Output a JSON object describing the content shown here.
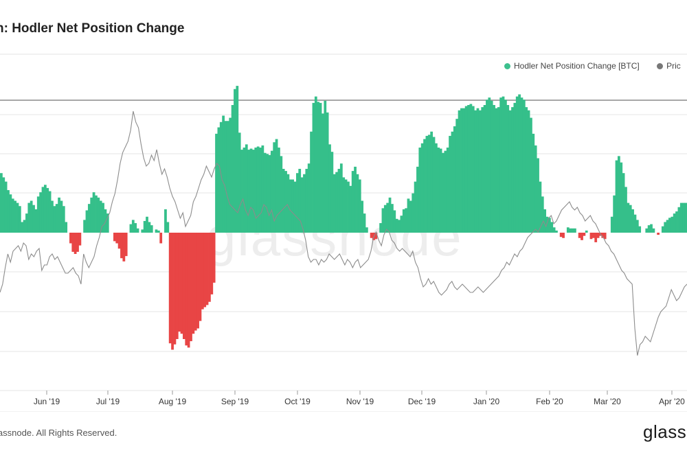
{
  "title": "n: Hodler Net Position Change",
  "legend": {
    "series1": "Hodler Net Position Change [BTC]",
    "series2": "Pric",
    "series1_color": "#3dc08e",
    "series2_color": "#777777"
  },
  "colors": {
    "positive": "#35bf8a",
    "negative": "#e84545",
    "price": "#8c8c8c",
    "grid": "#e6e6e6",
    "axis": "#999999"
  },
  "footer": {
    "copyright": "lassnode. All Rights Reserved.",
    "brand": "glass"
  },
  "watermark": "glassnode",
  "chart_data": {
    "type": "bar",
    "x_ticks": [
      "Jun '19",
      "Jul '19",
      "Aug '19",
      "Sep '19",
      "Oct '19",
      "Nov '19",
      "Dec '19",
      "Jan '20",
      "Feb '20",
      "Mar '20",
      "Apr '20"
    ],
    "grid": true,
    "legend_position": "top-right",
    "series": [
      {
        "name": "Hodler Net Position Change [BTC]",
        "kind": "bar",
        "values": [
          56,
          52,
          48,
          40,
          36,
          32,
          30,
          28,
          25,
          10,
          12,
          18,
          28,
          30,
          26,
          22,
          34,
          38,
          43,
          45,
          42,
          39,
          30,
          25,
          27,
          33,
          30,
          25,
          10,
          0,
          -10,
          -18,
          -20,
          -18,
          -12,
          0,
          12,
          21,
          27,
          33,
          38,
          35,
          33,
          30,
          28,
          22,
          18,
          0,
          0,
          -8,
          -10,
          -15,
          -24,
          -27,
          -22,
          0,
          8,
          12,
          9,
          4,
          0,
          3,
          11,
          15,
          10,
          7,
          0,
          3,
          2,
          -10,
          0,
          22,
          10,
          -104,
          -110,
          -105,
          -100,
          -93,
          -95,
          -100,
          -106,
          -108,
          -102,
          -95,
          -92,
          -90,
          -83,
          -72,
          -70,
          -68,
          -65,
          -58,
          -47,
          93,
          99,
          104,
          110,
          105,
          105,
          108,
          120,
          135,
          138,
          94,
          78,
          80,
          83,
          78,
          79,
          78,
          80,
          81,
          80,
          82,
          75,
          74,
          73,
          77,
          85,
          88,
          80,
          72,
          60,
          58,
          55,
          50,
          50,
          48,
          56,
          60,
          52,
          55,
          60,
          65,
          95,
          122,
          128,
          123,
          122,
          112,
          124,
          113,
          83,
          76,
          55,
          57,
          60,
          65,
          52,
          50,
          48,
          44,
          58,
          62,
          55,
          50,
          30,
          18,
          5,
          0,
          -5,
          -7,
          -6,
          0,
          9,
          23,
          26,
          28,
          33,
          27,
          21,
          13,
          12,
          16,
          22,
          23,
          32,
          30,
          37,
          48,
          62,
          80,
          84,
          88,
          91,
          92,
          95,
          90,
          84,
          80,
          79,
          75,
          77,
          80,
          91,
          95,
          100,
          107,
          115,
          117,
          117,
          119,
          120,
          121,
          119,
          115,
          117,
          115,
          118,
          120,
          125,
          127,
          124,
          120,
          117,
          118,
          127,
          128,
          125,
          120,
          115,
          118,
          122,
          128,
          130,
          127,
          125,
          118,
          115,
          108,
          93,
          82,
          70,
          48,
          34,
          22,
          15,
          14,
          10,
          5,
          2,
          0,
          -4,
          -5,
          0,
          5,
          4,
          4,
          4,
          0,
          -5,
          -7,
          -3,
          2,
          0,
          -6,
          -5,
          -9,
          -5,
          -3,
          -5,
          -6,
          0,
          0,
          15,
          35,
          68,
          72,
          66,
          56,
          43,
          28,
          26,
          22,
          17,
          12,
          6,
          0,
          0,
          4,
          7,
          8,
          4,
          0,
          -2,
          0,
          6,
          10,
          12,
          14,
          15,
          18,
          20,
          24,
          28,
          28,
          28
        ]
      },
      {
        "name": "Pric",
        "kind": "line",
        "values": [
          7.1,
          7.4,
          8.0,
          8.5,
          8.2,
          8.6,
          8.7,
          8.8,
          8.6,
          8.9,
          8.8,
          8.3,
          8.5,
          8.4,
          8.6,
          8.7,
          7.9,
          8.1,
          8.1,
          8.4,
          8.5,
          8.3,
          8.4,
          8.2,
          8.0,
          7.8,
          7.8,
          7.9,
          8.0,
          7.8,
          7.7,
          7.4,
          8.5,
          8.2,
          8.0,
          8.2,
          8.4,
          8.8,
          9.1,
          9.5,
          9.6,
          9.8,
          10.0,
          10.4,
          10.7,
          11.2,
          11.8,
          12.2,
          12.4,
          12.6,
          13.0,
          13.7,
          13.3,
          13.1,
          12.5,
          12.0,
          11.7,
          11.8,
          12.1,
          11.9,
          12.3,
          11.8,
          11.4,
          11.6,
          11.3,
          10.9,
          10.6,
          10.4,
          10.1,
          9.8,
          10.0,
          9.5,
          9.7,
          9.9,
          10.4,
          10.6,
          10.9,
          11.2,
          11.4,
          11.7,
          11.5,
          11.3,
          11.6,
          11.8,
          11.7,
          11.2,
          11.0,
          10.6,
          10.3,
          10.2,
          10.1,
          10.0,
          10.3,
          10.5,
          10.1,
          9.9,
          10.2,
          10.1,
          9.8,
          9.9,
          10.0,
          10.3,
          10.2,
          9.9,
          10.1,
          9.7,
          9.9,
          10.0,
          10.1,
          10.2,
          10.3,
          10.1,
          10.0,
          9.9,
          9.8,
          9.7,
          9.4,
          9.0,
          8.4,
          8.2,
          8.3,
          8.3,
          8.1,
          8.3,
          8.2,
          8.3,
          8.5,
          8.4,
          8.3,
          8.4,
          8.5,
          8.3,
          8.1,
          8.3,
          8.2,
          8.0,
          8.2,
          8.3,
          8.0,
          8.1,
          8.2,
          8.3,
          8.6,
          9.1,
          9.3,
          9.0,
          8.8,
          9.2,
          9.4,
          9.3,
          9.0,
          8.9,
          8.7,
          8.6,
          8.7,
          8.6,
          8.5,
          8.4,
          8.6,
          8.2,
          8.0,
          7.6,
          7.3,
          7.4,
          7.6,
          7.4,
          7.5,
          7.3,
          7.1,
          7.0,
          7.1,
          7.2,
          7.4,
          7.5,
          7.3,
          7.2,
          7.3,
          7.4,
          7.3,
          7.2,
          7.1,
          7.1,
          7.2,
          7.3,
          7.2,
          7.1,
          7.2,
          7.3,
          7.4,
          7.5,
          7.6,
          7.7,
          7.9,
          8.0,
          8.2,
          8.1,
          8.3,
          8.5,
          8.4,
          8.6,
          8.7,
          8.9,
          9.1,
          9.2,
          9.3,
          9.4,
          9.3,
          9.5,
          9.7,
          9.5,
          9.8,
          9.9,
          9.6,
          9.7,
          9.9,
          10.1,
          10.2,
          10.3,
          10.4,
          10.2,
          10.1,
          10.2,
          10.0,
          9.9,
          9.7,
          9.8,
          9.9,
          9.7,
          9.6,
          9.4,
          9.2,
          9.1,
          8.9,
          8.8,
          8.6,
          8.5,
          8.3,
          8.1,
          7.9,
          7.8,
          7.6,
          7.5,
          7.4,
          5.8,
          4.8,
          5.2,
          5.3,
          5.5,
          5.4,
          5.3,
          5.6,
          5.9,
          6.2,
          6.4,
          6.5,
          6.6,
          6.9,
          7.2,
          7.0,
          6.8,
          6.9,
          7.1,
          7.3,
          7.4
        ]
      }
    ]
  }
}
